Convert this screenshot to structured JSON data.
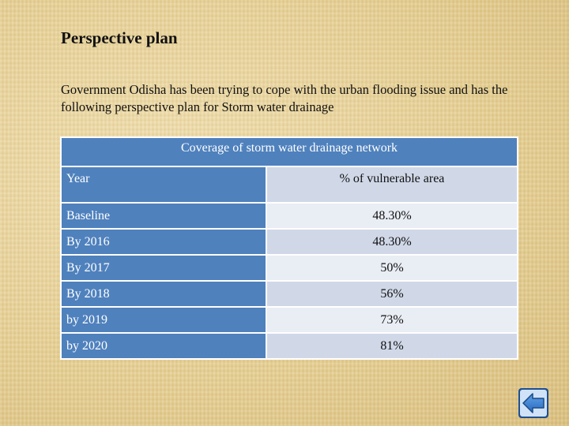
{
  "slide": {
    "title": "Perspective plan",
    "intro": "Government Odisha has been trying to cope with the urban flooding issue and has the following perspective plan for Storm water drainage"
  },
  "table": {
    "caption": "Coverage of storm water drainage network",
    "headers": [
      "Year",
      "% of  vulnerable area"
    ],
    "rows": [
      [
        "Baseline",
        "48.30%"
      ],
      [
        "By 2016",
        "48.30%"
      ],
      [
        "By 2017",
        "50%"
      ],
      [
        "By 2018",
        "56%"
      ],
      [
        "by 2019",
        "73%"
      ],
      [
        "by 2020",
        "81%"
      ]
    ]
  },
  "nav": {
    "icon": "back-arrow-icon",
    "color": "#3a7fd0"
  }
}
